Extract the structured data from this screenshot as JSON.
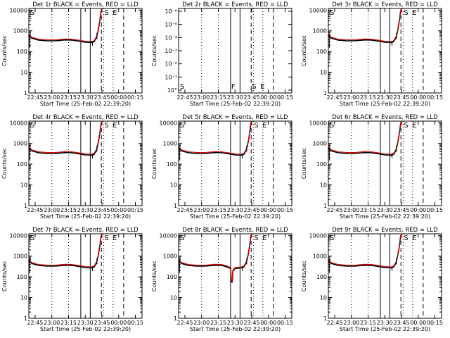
{
  "chart_data": {
    "type": "line",
    "xlabel": "Start Time (25-Feb-02 22:39:20)",
    "ylabel": "Counts/sec",
    "x_tick_labels": [
      "22:45",
      "23:00",
      "23:15",
      "23:30",
      "23:45",
      "00:00",
      "00:15"
    ],
    "x_ticks_minutes": [
      345,
      360,
      375,
      390,
      405,
      420,
      435
    ],
    "xlim_minutes": [
      339.33,
      441
    ],
    "y_tick_labels": [
      "1",
      "10",
      "100",
      "1000",
      "10000"
    ],
    "y_scale": "log",
    "ylim": [
      1,
      12000
    ],
    "series_legend": {
      "black": "Events",
      "red": "LLD"
    },
    "time_markers_minutes": {
      "solid": [
        386,
        394.5
      ],
      "dashed": [
        404.5,
        424.5
      ],
      "dotted": [
        360,
        375,
        406.5,
        415
      ]
    },
    "marker_labels": [
      "S",
      "F",
      "S",
      "E"
    ],
    "events_curve": [
      {
        "t": 339.5,
        "y": 620
      },
      {
        "t": 342,
        "y": 470
      },
      {
        "t": 348,
        "y": 380
      },
      {
        "t": 356,
        "y": 350
      },
      {
        "t": 364,
        "y": 355
      },
      {
        "t": 372,
        "y": 385
      },
      {
        "t": 378,
        "y": 380
      },
      {
        "t": 384,
        "y": 340
      },
      {
        "t": 390,
        "y": 300
      },
      {
        "t": 396,
        "y": 290
      },
      {
        "t": 398,
        "y": 320
      },
      {
        "t": 400,
        "y": 500
      },
      {
        "t": 401.5,
        "y": 1000
      },
      {
        "t": 403,
        "y": 3000
      },
      {
        "t": 404,
        "y": 8000
      },
      {
        "t": 404.6,
        "y": 11000
      }
    ],
    "panels": [
      {
        "title": "Det 1r BLACK = Events, RED = LLD",
        "variant": "normal"
      },
      {
        "title": "Det 2r BLACK = Events, RED = LLD",
        "variant": "empty",
        "y_tick_labels": [
          "10°",
          "10⁻¹",
          "10⁻²",
          "10⁻³",
          "10⁻⁴",
          "10⁻⁵",
          "10⁻⁶"
        ]
      },
      {
        "title": "Det 3r BLACK = Events, RED = LLD",
        "variant": "normal"
      },
      {
        "title": "Det 4r BLACK = Events, RED = LLD",
        "variant": "normal"
      },
      {
        "title": "Det 5r BLACK = Events, RED = LLD",
        "variant": "normal"
      },
      {
        "title": "Det 6r BLACK = Events, RED = LLD",
        "variant": "normal"
      },
      {
        "title": "Det 7r BLACK = Events, RED = LLD",
        "variant": "normal"
      },
      {
        "title": "Det 8r BLACK = Events, RED = LLD",
        "variant": "dip"
      },
      {
        "title": "Det 9r BLACK = Events, RED = LLD",
        "variant": "normal"
      }
    ]
  }
}
